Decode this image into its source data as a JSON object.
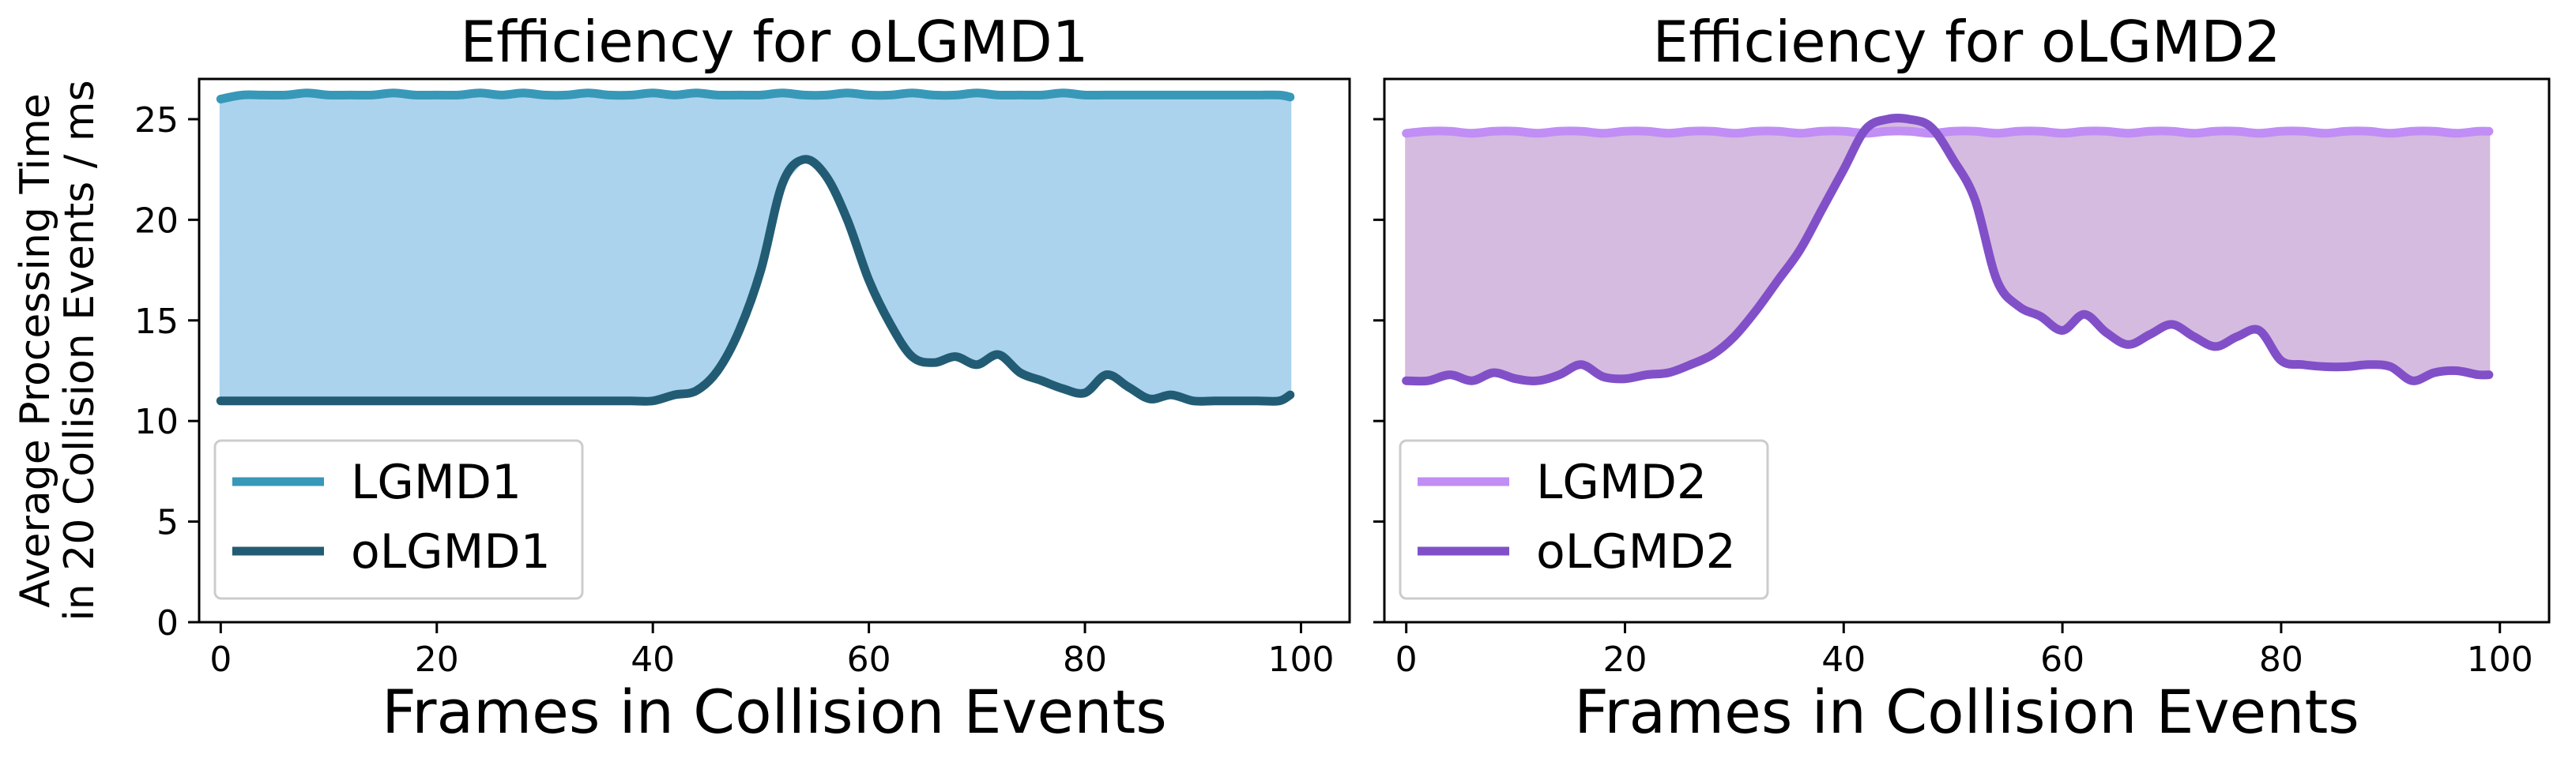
{
  "chart_data": [
    {
      "type": "line",
      "title": "Efficiency for oLGMD1",
      "xlabel": "Frames in Collision Events",
      "ylabel": [
        "Average Processing Time",
        "in 20 Collision Events / ms"
      ],
      "xlim": [
        -2,
        104.5
      ],
      "ylim": [
        0,
        27
      ],
      "xticks": [
        0,
        20,
        40,
        60,
        80,
        100
      ],
      "yticks": [
        0,
        5,
        10,
        15,
        20,
        25
      ],
      "legend_position": "lower-left",
      "fill_between": true,
      "fill_color": "#abd3ed",
      "x": [
        0,
        2,
        4,
        6,
        8,
        10,
        12,
        14,
        16,
        18,
        20,
        22,
        24,
        26,
        28,
        30,
        32,
        34,
        36,
        38,
        40,
        42,
        44,
        46,
        48,
        50,
        52,
        54,
        56,
        58,
        60,
        62,
        64,
        66,
        68,
        70,
        72,
        74,
        76,
        78,
        80,
        82,
        84,
        86,
        88,
        90,
        92,
        94,
        96,
        98,
        99
      ],
      "series": [
        {
          "name": "LGMD1",
          "color": "#3898b8",
          "values": [
            26.0,
            26.2,
            26.2,
            26.2,
            26.3,
            26.2,
            26.2,
            26.2,
            26.3,
            26.2,
            26.2,
            26.2,
            26.3,
            26.2,
            26.3,
            26.2,
            26.2,
            26.3,
            26.2,
            26.2,
            26.3,
            26.2,
            26.3,
            26.2,
            26.2,
            26.2,
            26.3,
            26.2,
            26.2,
            26.3,
            26.2,
            26.2,
            26.3,
            26.2,
            26.2,
            26.3,
            26.2,
            26.2,
            26.2,
            26.3,
            26.2,
            26.2,
            26.2,
            26.2,
            26.2,
            26.2,
            26.2,
            26.2,
            26.2,
            26.2,
            26.1
          ]
        },
        {
          "name": "oLGMD1",
          "color": "#225c74",
          "values": [
            11.0,
            11.0,
            11.0,
            11.0,
            11.0,
            11.0,
            11.0,
            11.0,
            11.0,
            11.0,
            11.0,
            11.0,
            11.0,
            11.0,
            11.0,
            11.0,
            11.0,
            11.0,
            11.0,
            11.0,
            11.0,
            11.3,
            11.5,
            12.5,
            14.5,
            17.5,
            21.8,
            23.0,
            22.2,
            20.0,
            17.0,
            14.8,
            13.2,
            12.9,
            13.2,
            12.8,
            13.3,
            12.4,
            12.0,
            11.6,
            11.4,
            12.3,
            11.7,
            11.1,
            11.3,
            11.0,
            11.0,
            11.0,
            11.0,
            11.0,
            11.3
          ]
        }
      ]
    },
    {
      "type": "line",
      "title": "Efficiency for oLGMD2",
      "xlabel": "Frames in Collision Events",
      "ylabel": "",
      "xlim": [
        -2,
        104.5
      ],
      "ylim": [
        0,
        27
      ],
      "xticks": [
        0,
        20,
        40,
        60,
        80,
        100
      ],
      "yticks": [
        0,
        5,
        10,
        15,
        20,
        25
      ],
      "legend_position": "lower-left",
      "fill_between": true,
      "fill_color": "#d6bbe0",
      "x": [
        0,
        2,
        4,
        6,
        8,
        10,
        12,
        14,
        16,
        18,
        20,
        22,
        24,
        26,
        28,
        30,
        32,
        34,
        36,
        38,
        40,
        42,
        44,
        46,
        48,
        50,
        52,
        54,
        56,
        58,
        60,
        62,
        64,
        66,
        68,
        70,
        72,
        74,
        76,
        78,
        80,
        82,
        84,
        86,
        88,
        90,
        92,
        94,
        96,
        98,
        99
      ],
      "series": [
        {
          "name": "LGMD2",
          "color": "#c08ef5",
          "values": [
            24.3,
            24.4,
            24.4,
            24.3,
            24.4,
            24.4,
            24.3,
            24.4,
            24.4,
            24.3,
            24.4,
            24.4,
            24.3,
            24.4,
            24.4,
            24.3,
            24.4,
            24.4,
            24.3,
            24.4,
            24.4,
            24.3,
            24.4,
            24.4,
            24.3,
            24.4,
            24.4,
            24.3,
            24.4,
            24.4,
            24.3,
            24.4,
            24.4,
            24.3,
            24.4,
            24.4,
            24.3,
            24.4,
            24.4,
            24.3,
            24.4,
            24.4,
            24.3,
            24.4,
            24.4,
            24.3,
            24.4,
            24.4,
            24.3,
            24.4,
            24.4
          ]
        },
        {
          "name": "oLGMD2",
          "color": "#8150c8",
          "values": [
            12.0,
            12.0,
            12.3,
            12.0,
            12.4,
            12.1,
            12.0,
            12.3,
            12.8,
            12.2,
            12.1,
            12.3,
            12.4,
            12.8,
            13.3,
            14.2,
            15.5,
            17.0,
            18.5,
            20.5,
            22.5,
            24.5,
            25.0,
            25.0,
            24.6,
            23.0,
            21.0,
            17.0,
            15.7,
            15.2,
            14.5,
            15.3,
            14.4,
            13.8,
            14.3,
            14.8,
            14.2,
            13.7,
            14.2,
            14.5,
            13.0,
            12.8,
            12.7,
            12.7,
            12.8,
            12.7,
            12.0,
            12.4,
            12.5,
            12.3,
            12.3
          ]
        }
      ]
    }
  ]
}
